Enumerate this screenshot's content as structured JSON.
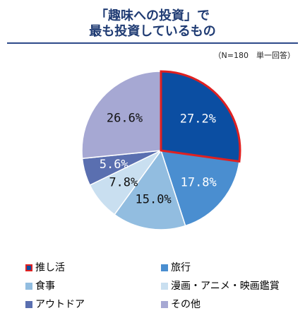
{
  "chart_data": {
    "type": "pie",
    "title_lines": [
      "「趣味への投資」で",
      "最も投資しているもの"
    ],
    "note": "（N=180　単一回答）",
    "slices": [
      {
        "name": "推し活",
        "value": 27.2,
        "label": "27.2%",
        "color": "#0b4ea2",
        "highlight": true
      },
      {
        "name": "旅行",
        "value": 17.8,
        "label": "17.8%",
        "color": "#4a8ed0"
      },
      {
        "name": "食事",
        "value": 15.0,
        "label": "15.0%",
        "color": "#92bde0"
      },
      {
        "name": "漫画・アニメ・映画鑑賞",
        "value": 7.8,
        "label": "7.8%",
        "color": "#c9dff0"
      },
      {
        "name": "アウトドア",
        "value": 5.6,
        "label": "5.6%",
        "color": "#5a6fb0"
      },
      {
        "name": "その他",
        "value": 26.6,
        "label": "26.6%",
        "color": "#a6a8d3"
      }
    ],
    "highlight_color": "#e02020"
  }
}
